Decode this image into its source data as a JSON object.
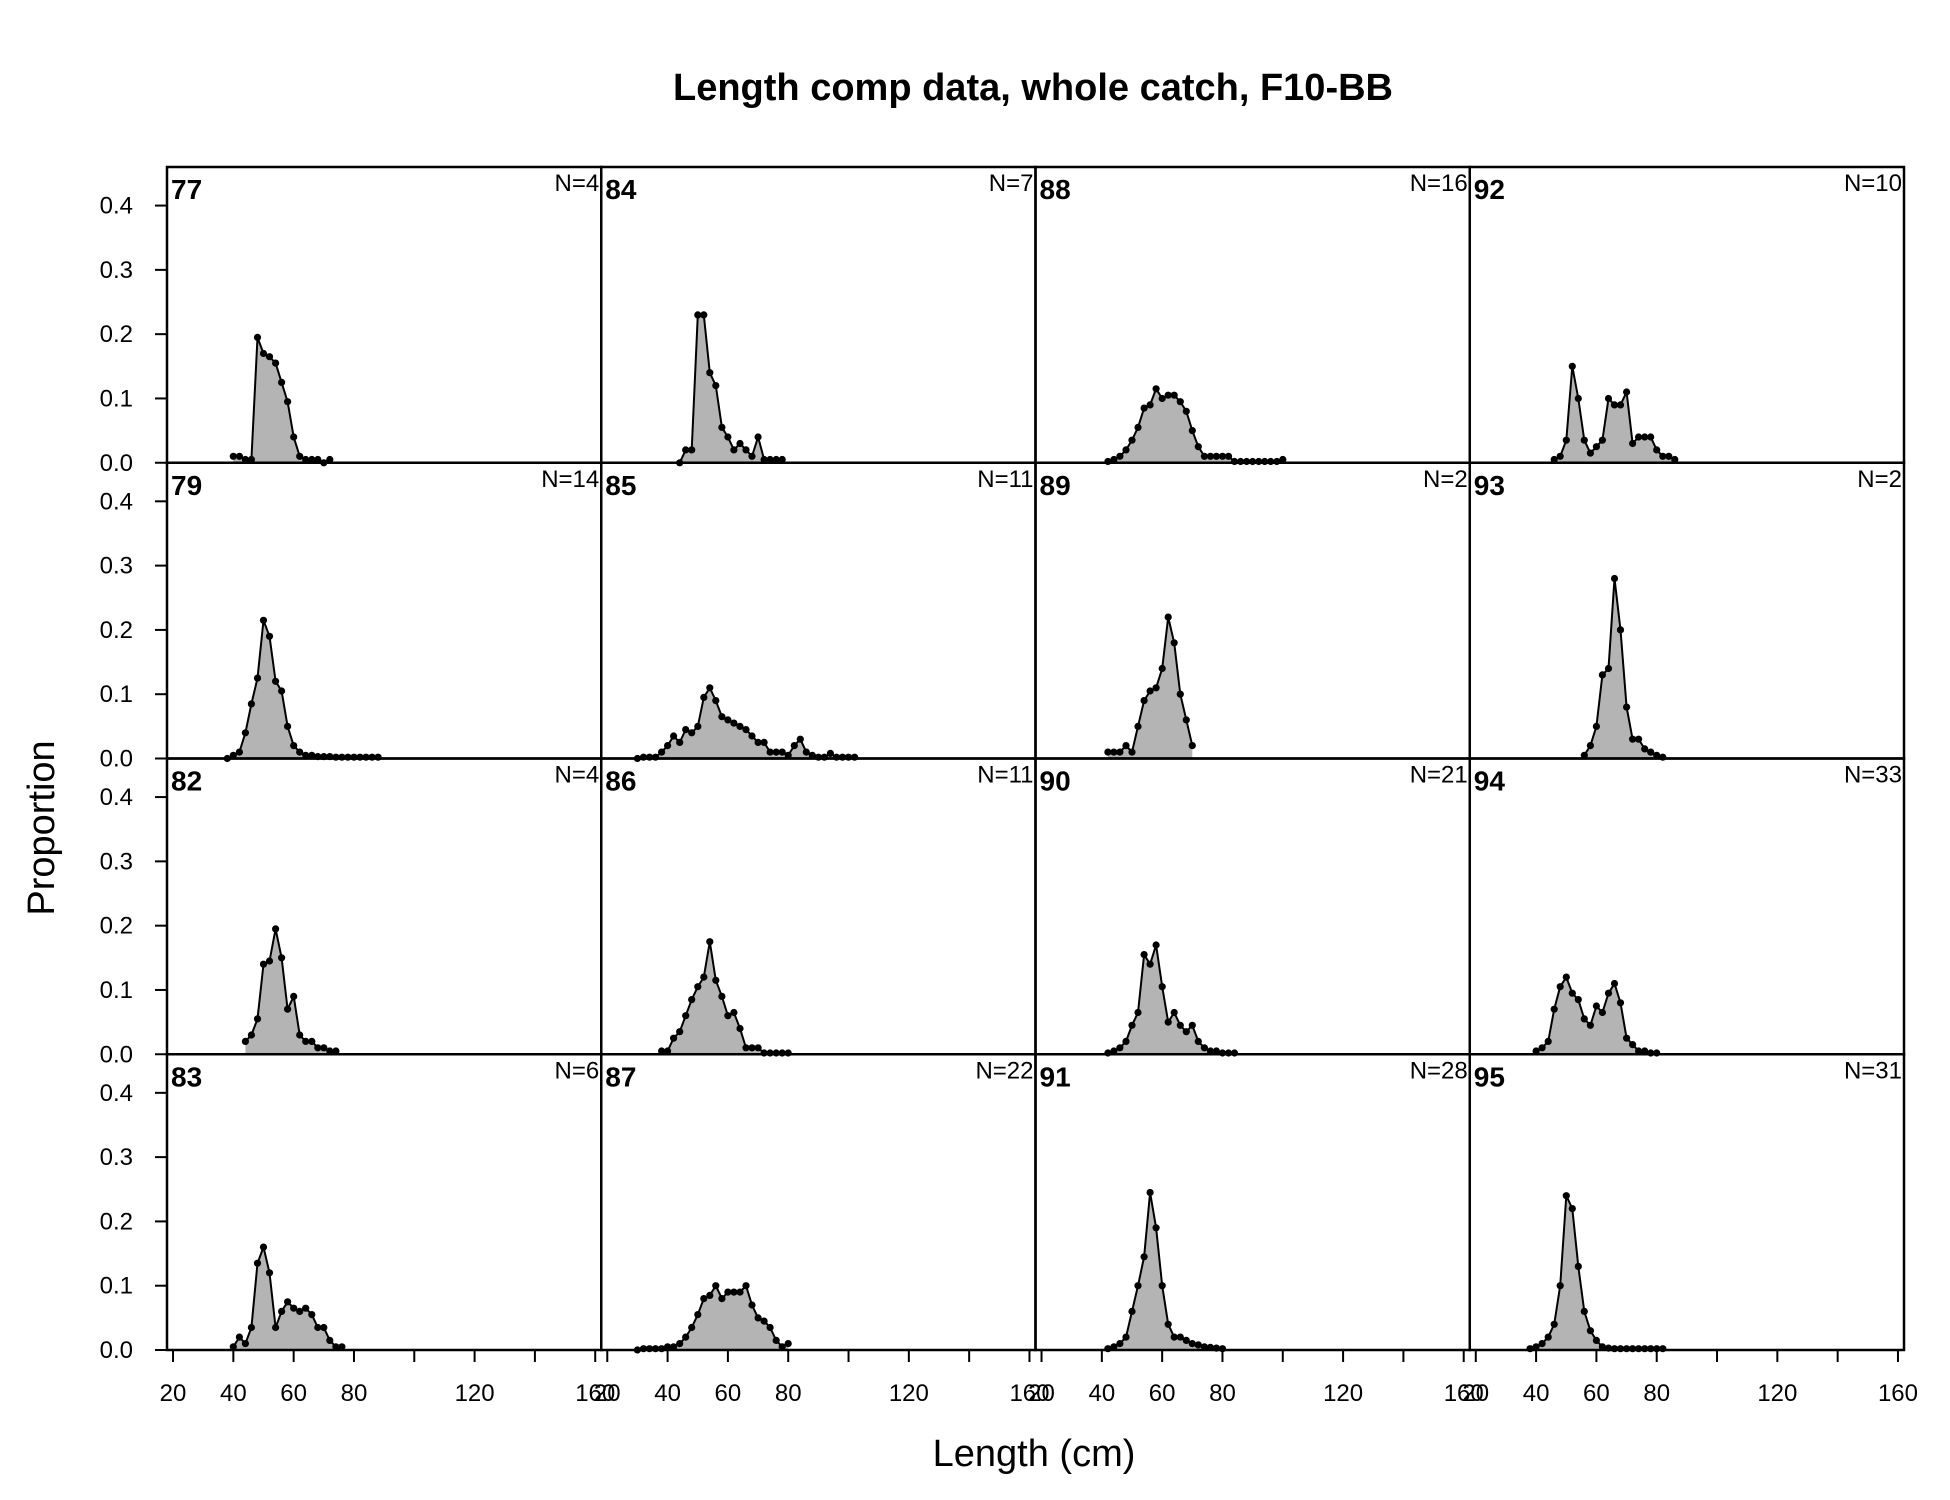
{
  "chart_data": {
    "type": "area",
    "title": "Length comp data, whole catch, F10-BB",
    "xlabel": "Length (cm)",
    "ylabel": "Proportion",
    "xlim": [
      18,
      162
    ],
    "ylim": [
      0,
      0.46
    ],
    "x_ticks": [
      20,
      40,
      60,
      80,
      120,
      160
    ],
    "x_minor_ticks": [
      100,
      140
    ],
    "y_ticks": [
      "0.0",
      "0.1",
      "0.2",
      "0.3",
      "0.4"
    ],
    "y_tick_values": [
      0,
      0.1,
      0.2,
      0.3,
      0.4
    ],
    "fill_color": "#b4b4b4",
    "line_color": "#000000",
    "grid": false,
    "layout": "4x4 panels, column-major by year",
    "panels": [
      {
        "year": "77",
        "n_label": "N=4",
        "x": [
          40,
          42,
          44,
          46,
          48,
          50,
          52,
          54,
          56,
          58,
          60,
          62,
          64,
          66,
          68,
          70,
          72
        ],
        "values": [
          0.01,
          0.01,
          0.005,
          0.005,
          0.195,
          0.17,
          0.165,
          0.155,
          0.125,
          0.095,
          0.04,
          0.01,
          0.005,
          0.005,
          0.005,
          0,
          0.005
        ]
      },
      {
        "year": "79",
        "n_label": "N=14",
        "x": [
          38,
          40,
          42,
          44,
          46,
          48,
          50,
          52,
          54,
          56,
          58,
          60,
          62,
          64,
          66,
          68,
          70,
          72,
          74,
          76,
          78,
          80,
          82,
          84,
          86,
          88
        ],
        "values": [
          0,
          0.005,
          0.01,
          0.04,
          0.085,
          0.125,
          0.215,
          0.19,
          0.12,
          0.105,
          0.05,
          0.02,
          0.01,
          0.005,
          0.005,
          0.003,
          0.003,
          0.003,
          0.002,
          0.002,
          0.002,
          0.002,
          0.002,
          0.002,
          0.002,
          0.002
        ]
      },
      {
        "year": "82",
        "n_label": "N=4",
        "x": [
          44,
          46,
          48,
          50,
          52,
          54,
          56,
          58,
          60,
          62,
          64,
          66,
          68,
          70,
          72,
          74
        ],
        "values": [
          0.02,
          0.03,
          0.055,
          0.14,
          0.145,
          0.195,
          0.15,
          0.07,
          0.09,
          0.03,
          0.02,
          0.02,
          0.01,
          0.01,
          0.005,
          0.005
        ]
      },
      {
        "year": "83",
        "n_label": "N=6",
        "x": [
          40,
          42,
          44,
          46,
          48,
          50,
          52,
          54,
          56,
          58,
          60,
          62,
          64,
          66,
          68,
          70,
          72,
          74,
          76
        ],
        "values": [
          0.005,
          0.02,
          0.01,
          0.035,
          0.135,
          0.16,
          0.12,
          0.035,
          0.06,
          0.075,
          0.065,
          0.06,
          0.065,
          0.055,
          0.035,
          0.035,
          0.015,
          0.005,
          0.005
        ]
      },
      {
        "year": "84",
        "n_label": "N=7",
        "x": [
          44,
          46,
          48,
          50,
          52,
          54,
          56,
          58,
          60,
          62,
          64,
          66,
          68,
          70,
          72,
          74,
          76,
          78
        ],
        "values": [
          0,
          0.02,
          0.02,
          0.23,
          0.23,
          0.14,
          0.12,
          0.055,
          0.04,
          0.02,
          0.03,
          0.02,
          0.01,
          0.04,
          0.005,
          0.005,
          0.005,
          0.005
        ]
      },
      {
        "year": "85",
        "n_label": "N=11",
        "x": [
          30,
          32,
          34,
          36,
          38,
          40,
          42,
          44,
          46,
          48,
          50,
          52,
          54,
          56,
          58,
          60,
          62,
          64,
          66,
          68,
          70,
          72,
          74,
          76,
          78,
          80,
          82,
          84,
          86,
          88,
          90,
          92,
          94,
          96,
          98,
          100,
          102
        ],
        "values": [
          0,
          0.002,
          0.002,
          0.002,
          0.01,
          0.02,
          0.035,
          0.025,
          0.045,
          0.04,
          0.05,
          0.095,
          0.11,
          0.09,
          0.065,
          0.06,
          0.055,
          0.05,
          0.045,
          0.035,
          0.025,
          0.025,
          0.01,
          0.01,
          0.01,
          0.005,
          0.02,
          0.03,
          0.01,
          0.005,
          0.002,
          0.002,
          0.008,
          0.002,
          0.002,
          0.002,
          0.002
        ]
      },
      {
        "year": "86",
        "n_label": "N=11",
        "x": [
          38,
          40,
          42,
          44,
          46,
          48,
          50,
          52,
          54,
          56,
          58,
          60,
          62,
          64,
          66,
          68,
          70,
          72,
          74,
          76,
          78,
          80
        ],
        "values": [
          0.005,
          0.005,
          0.025,
          0.035,
          0.06,
          0.085,
          0.105,
          0.12,
          0.175,
          0.115,
          0.09,
          0.06,
          0.065,
          0.04,
          0.01,
          0.01,
          0.01,
          0.002,
          0.002,
          0.002,
          0.002,
          0.002
        ]
      },
      {
        "year": "87",
        "n_label": "N=22",
        "x": [
          30,
          32,
          34,
          36,
          38,
          40,
          42,
          44,
          46,
          48,
          50,
          52,
          54,
          56,
          58,
          60,
          62,
          64,
          66,
          68,
          70,
          72,
          74,
          76,
          78,
          80
        ],
        "values": [
          0,
          0.002,
          0.002,
          0.002,
          0.002,
          0.005,
          0.005,
          0.01,
          0.02,
          0.035,
          0.055,
          0.08,
          0.085,
          0.1,
          0.08,
          0.09,
          0.09,
          0.09,
          0.1,
          0.07,
          0.05,
          0.045,
          0.035,
          0.015,
          0.005,
          0.01
        ]
      },
      {
        "year": "88",
        "n_label": "N=16",
        "x": [
          42,
          44,
          46,
          48,
          50,
          52,
          54,
          56,
          58,
          60,
          62,
          64,
          66,
          68,
          70,
          72,
          74,
          76,
          78,
          80,
          82,
          84,
          86,
          88,
          90,
          92,
          94,
          96,
          98,
          100
        ],
        "values": [
          0.002,
          0.005,
          0.01,
          0.02,
          0.035,
          0.055,
          0.085,
          0.09,
          0.115,
          0.1,
          0.105,
          0.105,
          0.095,
          0.08,
          0.05,
          0.025,
          0.01,
          0.01,
          0.01,
          0.01,
          0.01,
          0.002,
          0.002,
          0.002,
          0.002,
          0.002,
          0.002,
          0.002,
          0.002,
          0.005
        ]
      },
      {
        "year": "89",
        "n_label": "N=2",
        "x": [
          42,
          44,
          46,
          48,
          50,
          52,
          54,
          56,
          58,
          60,
          62,
          64,
          66,
          68,
          70
        ],
        "values": [
          0.01,
          0.01,
          0.01,
          0.02,
          0.01,
          0.05,
          0.09,
          0.105,
          0.11,
          0.14,
          0.22,
          0.18,
          0.1,
          0.06,
          0.02
        ]
      },
      {
        "year": "90",
        "n_label": "N=21",
        "x": [
          42,
          44,
          46,
          48,
          50,
          52,
          54,
          56,
          58,
          60,
          62,
          64,
          66,
          68,
          70,
          72,
          74,
          76,
          78,
          80,
          82,
          84
        ],
        "values": [
          0.002,
          0.005,
          0.01,
          0.02,
          0.045,
          0.065,
          0.155,
          0.14,
          0.17,
          0.105,
          0.05,
          0.065,
          0.045,
          0.035,
          0.045,
          0.02,
          0.01,
          0.005,
          0.005,
          0.002,
          0.002,
          0.002
        ]
      },
      {
        "year": "91",
        "n_label": "N=28",
        "x": [
          42,
          44,
          46,
          48,
          50,
          52,
          54,
          56,
          58,
          60,
          62,
          64,
          66,
          68,
          70,
          72,
          74,
          76,
          78,
          80
        ],
        "values": [
          0.002,
          0.005,
          0.01,
          0.02,
          0.06,
          0.1,
          0.145,
          0.245,
          0.19,
          0.1,
          0.04,
          0.02,
          0.02,
          0.015,
          0.01,
          0.008,
          0.005,
          0.004,
          0.003,
          0.002
        ]
      },
      {
        "year": "92",
        "n_label": "N=10",
        "x": [
          46,
          48,
          50,
          52,
          54,
          56,
          58,
          60,
          62,
          64,
          66,
          68,
          70,
          72,
          74,
          76,
          78,
          80,
          82,
          84,
          86
        ],
        "values": [
          0.005,
          0.01,
          0.035,
          0.15,
          0.1,
          0.035,
          0.015,
          0.025,
          0.035,
          0.1,
          0.09,
          0.09,
          0.11,
          0.03,
          0.04,
          0.04,
          0.04,
          0.02,
          0.01,
          0.01,
          0.005
        ]
      },
      {
        "year": "93",
        "n_label": "N=2",
        "x": [
          56,
          58,
          60,
          62,
          64,
          66,
          68,
          70,
          72,
          74,
          76,
          78,
          80,
          82
        ],
        "values": [
          0.005,
          0.02,
          0.05,
          0.13,
          0.14,
          0.28,
          0.2,
          0.08,
          0.03,
          0.03,
          0.015,
          0.01,
          0.005,
          0.002
        ]
      },
      {
        "year": "94",
        "n_label": "N=33",
        "x": [
          40,
          42,
          44,
          46,
          48,
          50,
          52,
          54,
          56,
          58,
          60,
          62,
          64,
          66,
          68,
          70,
          72,
          74,
          76,
          78,
          80
        ],
        "values": [
          0.005,
          0.01,
          0.02,
          0.07,
          0.105,
          0.12,
          0.095,
          0.085,
          0.055,
          0.045,
          0.075,
          0.065,
          0.095,
          0.11,
          0.08,
          0.025,
          0.015,
          0.005,
          0.005,
          0.002,
          0.002
        ]
      },
      {
        "year": "95",
        "n_label": "N=31",
        "x": [
          38,
          40,
          42,
          44,
          46,
          48,
          50,
          52,
          54,
          56,
          58,
          60,
          62,
          64,
          66,
          68,
          70,
          72,
          74,
          76,
          78,
          80,
          82
        ],
        "values": [
          0.002,
          0.005,
          0.01,
          0.02,
          0.04,
          0.1,
          0.24,
          0.22,
          0.13,
          0.06,
          0.03,
          0.015,
          0.005,
          0.003,
          0.002,
          0.002,
          0.002,
          0.002,
          0.002,
          0.002,
          0.002,
          0.002,
          0.002
        ]
      }
    ]
  }
}
